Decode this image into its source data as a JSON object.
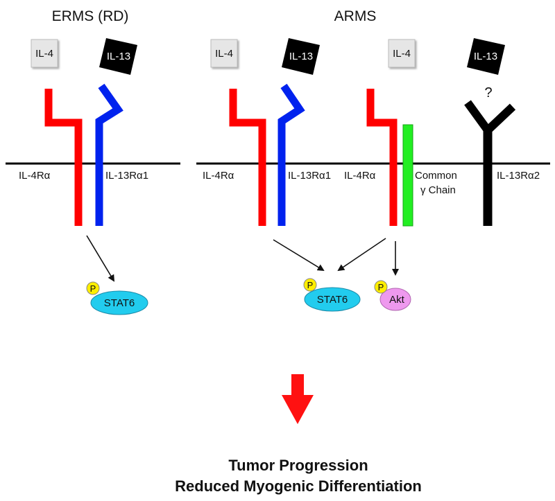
{
  "panels": {
    "erms": {
      "title": "ERMS (RD)",
      "ligands": [
        "IL-4",
        "IL-13"
      ],
      "receptors": [
        "IL-4Rα",
        "IL-13Rα1"
      ],
      "signal": {
        "phospho": "P",
        "protein": "STAT6"
      }
    },
    "arms": {
      "title": "ARMS",
      "ligands": [
        "IL-4",
        "IL-13",
        "IL-4",
        "IL-13"
      ],
      "receptors": [
        "IL-4Rα",
        "IL-13Rα1",
        "IL-4Rα",
        "IL-13Rα2"
      ],
      "common_chain": [
        "Common",
        "γ Chain"
      ],
      "unknown_mark": "?",
      "signals": [
        {
          "phospho": "P",
          "protein": "STAT6"
        },
        {
          "phospho": "P",
          "protein": "Akt"
        }
      ]
    }
  },
  "outcome": {
    "line1": "Tumor Progression",
    "line2": "Reduced Myogenic Differentiation"
  },
  "colors": {
    "il4_receptor": "#ff0000",
    "il13_receptor_a1": "#0022ee",
    "il13_receptor_a2": "#000000",
    "common_gamma": "#22ee22",
    "stat6": "#22ccee",
    "akt": "#ee99ee",
    "phospho": "#ffee00",
    "il4_ligand_box": "#e6e6e6",
    "il13_ligand_box": "#000000",
    "down_arrow": "#ff1111"
  }
}
